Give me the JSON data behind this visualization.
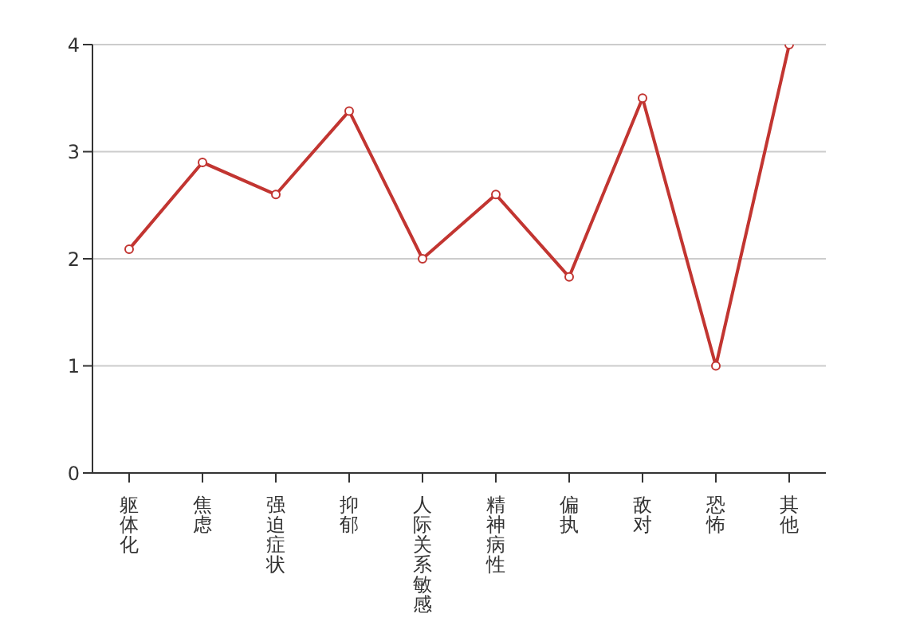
{
  "chart_data": {
    "type": "line",
    "categories": [
      "躯体化",
      "焦虑",
      "强迫症状",
      "抑郁",
      "人际关系敏感",
      "精神病性",
      "偏执",
      "敌对",
      "恐怖",
      "其他"
    ],
    "series": [
      {
        "color": "#c23531",
        "values": [
          2.09,
          2.9,
          2.6,
          3.38,
          2.0,
          2.6,
          1.83,
          3.5,
          1.0,
          4.0
        ]
      }
    ],
    "ylim": [
      0,
      4
    ],
    "yticks": [
      0,
      1,
      2,
      3,
      4
    ],
    "grid": "y",
    "marker": "circle",
    "line_style": "solid",
    "legend": false
  }
}
